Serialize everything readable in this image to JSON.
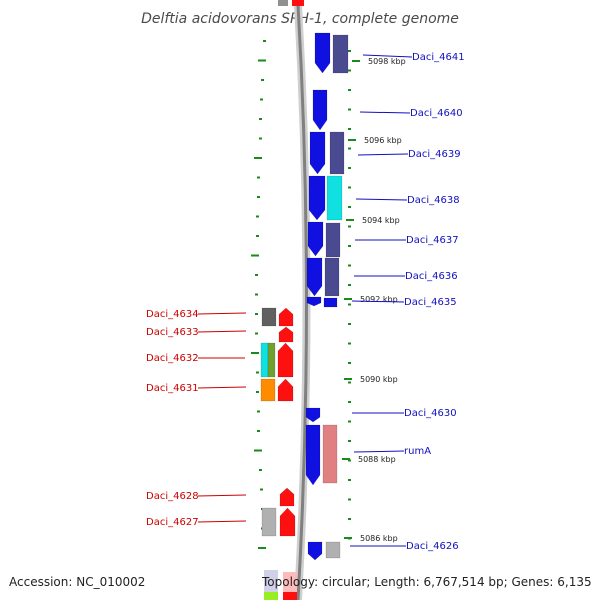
{
  "title": "Delftia acidovorans SPH-1, complete genome",
  "accession": "Accession: NC_010002",
  "topology": "Topology: circular; Length: 6,767,514 bp; Genes: 6,135",
  "colors": {
    "forward": "#1010e0",
    "purple": "#4a4a90",
    "cyan": "#10e0e0",
    "pink": "#e08080",
    "red": "#ff1010",
    "gray": "#b0b0b0",
    "darkgray": "#606060",
    "orange": "#ff8c00",
    "olive": "#70a030",
    "tickgreen": "#1a8a1a",
    "label_right": "#1010c0",
    "label_left": "#cc0000"
  },
  "kbp_ticks": [
    "5098 kbp",
    "5096 kbp",
    "5094 kbp",
    "5092 kbp",
    "5090 kbp",
    "5088 kbp",
    "5086 kbp"
  ],
  "right_genes": [
    "Daci_4641",
    "Daci_4640",
    "Daci_4639",
    "Daci_4638",
    "Daci_4637",
    "Daci_4636",
    "Daci_4635",
    "Daci_4630",
    "rumA",
    "Daci_4626"
  ],
  "left_genes": [
    "Daci_4634",
    "Daci_4633",
    "Daci_4632",
    "Daci_4631",
    "Daci_4628",
    "Daci_4627"
  ]
}
